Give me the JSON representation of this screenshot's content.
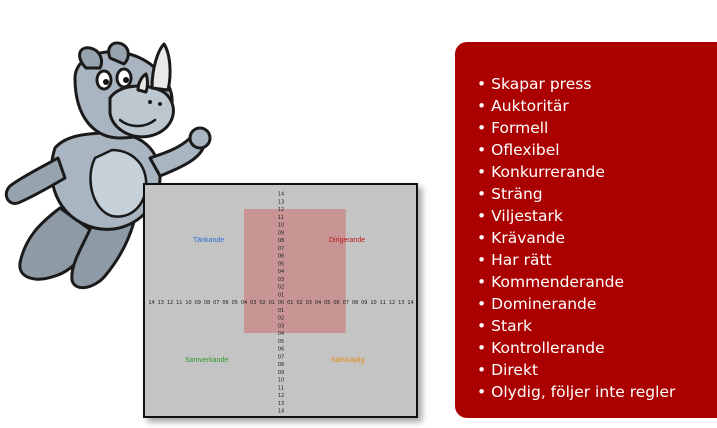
{
  "diagram": {
    "quadrants": {
      "top_left": {
        "label": "Tänkande",
        "color": "#2b6fd1"
      },
      "top_right": {
        "label": "Dirigerande",
        "color": "#c0151b"
      },
      "bottom_left": {
        "label": "Samverkande",
        "color": "#2f9a2f"
      },
      "bottom_right": {
        "label": "Sällskaplig",
        "color": "#e58c17"
      }
    },
    "axis_ticks": [
      "14",
      "13",
      "12",
      "11",
      "10",
      "09",
      "08",
      "07",
      "06",
      "05",
      "04",
      "03",
      "02",
      "01",
      "00",
      "01",
      "02",
      "03",
      "04",
      "05",
      "06",
      "07",
      "08",
      "09",
      "10",
      "11",
      "12",
      "13",
      "14"
    ],
    "highlight": {
      "x_from": -4,
      "x_to": 7,
      "y_from": 12,
      "y_to": -4,
      "color": "#c98c8c"
    }
  },
  "traits_panel": {
    "background": "#ab0000",
    "items": [
      "Skapar press",
      "Auktoritär",
      "Formell",
      "Oflexibel",
      "Konkurrerande",
      "Sträng",
      "Viljestark",
      "Krävande",
      "Har rätt",
      "Kommenderande",
      "Dominerande",
      "Stark",
      "Kontrollerande",
      "Direkt",
      "Olydig, följer inte regler"
    ]
  }
}
